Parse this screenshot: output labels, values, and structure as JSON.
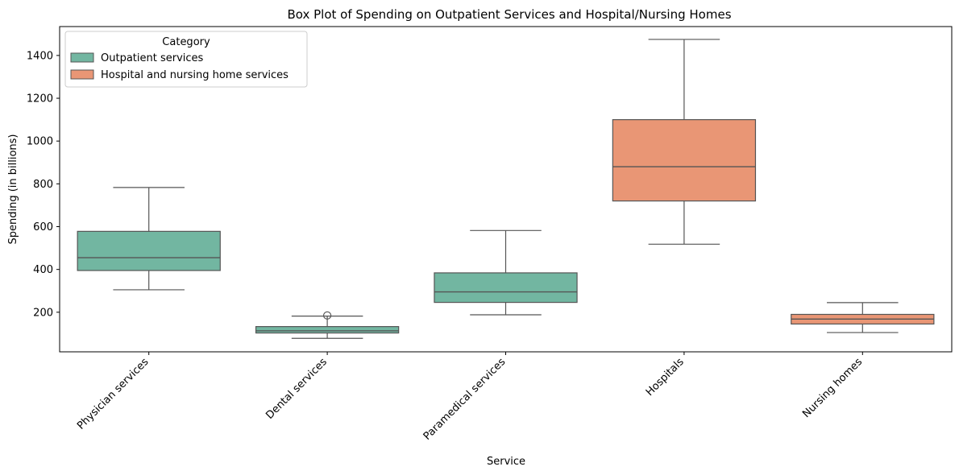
{
  "chart_data": {
    "type": "box",
    "title": "Box Plot of Spending on Outpatient Services and Hospital/Nursing Homes",
    "xlabel": "Service",
    "ylabel": "Spending (in billions)",
    "ylim": [
      15,
      1535
    ],
    "yticks": [
      200,
      400,
      600,
      800,
      1000,
      1200,
      1400
    ],
    "grid": false,
    "legend": {
      "title": "Category",
      "placement": "top-left",
      "entries": [
        {
          "name": "Outpatient services",
          "color": "#72b6a1"
        },
        {
          "name": "Hospital and nursing home services",
          "color": "#e99675"
        }
      ]
    },
    "categories": [
      "Physician services",
      "Dental services",
      "Paramedical services",
      "Hospitals",
      "Nursing homes"
    ],
    "boxes": [
      {
        "category": "Physician services",
        "series": "Outpatient services",
        "whisker_low": 305,
        "q1": 395,
        "median": 455,
        "q3": 578,
        "whisker_high": 783,
        "outliers": []
      },
      {
        "category": "Dental services",
        "series": "Outpatient services",
        "whisker_low": 78,
        "q1": 103,
        "median": 113,
        "q3": 133,
        "whisker_high": 182,
        "outliers": [
          185
        ]
      },
      {
        "category": "Paramedical services",
        "series": "Outpatient services",
        "whisker_low": 188,
        "q1": 246,
        "median": 295,
        "q3": 384,
        "whisker_high": 582,
        "outliers": []
      },
      {
        "category": "Hospitals",
        "series": "Hospital and nursing home services",
        "whisker_low": 518,
        "q1": 720,
        "median": 880,
        "q3": 1100,
        "whisker_high": 1475,
        "outliers": []
      },
      {
        "category": "Nursing homes",
        "series": "Hospital and nursing home services",
        "whisker_low": 105,
        "q1": 145,
        "median": 168,
        "q3": 190,
        "whisker_high": 245,
        "outliers": []
      }
    ],
    "colors": {
      "outline": "#555555",
      "axis": "#000000"
    }
  }
}
